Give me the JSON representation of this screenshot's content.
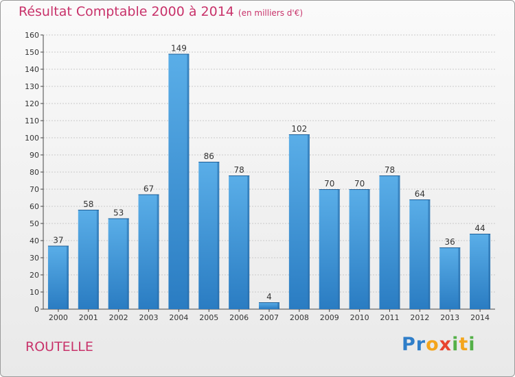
{
  "chart_data": {
    "type": "bar",
    "title": "Résultat Comptable 2000 à 2014",
    "subtitle": "(en milliers d'€)",
    "categories": [
      "2000",
      "2001",
      "2002",
      "2003",
      "2004",
      "2005",
      "2006",
      "2007",
      "2008",
      "2009",
      "2010",
      "2011",
      "2012",
      "2013",
      "2014"
    ],
    "values": [
      37,
      58,
      53,
      67,
      149,
      86,
      78,
      4,
      102,
      70,
      70,
      78,
      64,
      36,
      44
    ],
    "ylim": [
      0,
      160
    ],
    "yticks": [
      0,
      10,
      20,
      30,
      40,
      50,
      60,
      70,
      80,
      90,
      100,
      110,
      120,
      130,
      140,
      150,
      160
    ],
    "xlabel": "",
    "ylabel": "",
    "grid": true,
    "bar_color": "#3e92d6"
  },
  "place_name": "ROUTELLE",
  "logo": {
    "p1": "Pr",
    "p2": "o",
    "p3": "x",
    "p4": "i",
    "p5": "t",
    "p6": "i"
  }
}
